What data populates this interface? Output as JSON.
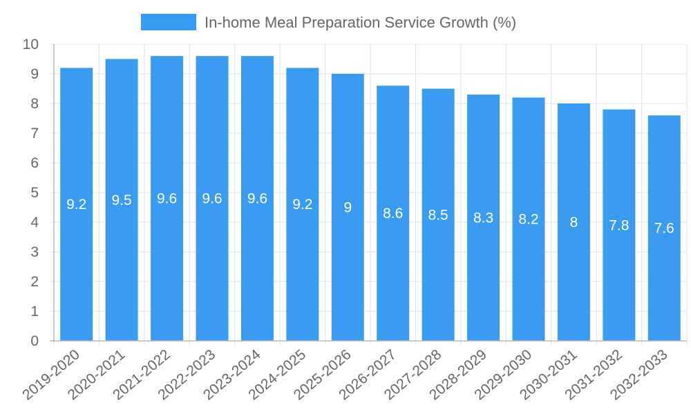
{
  "chart_data": {
    "type": "bar",
    "categories": [
      "2019-2020",
      "2020-2021",
      "2021-2022",
      "2022-2023",
      "2023-2024",
      "2024-2025",
      "2025-2026",
      "2026-2027",
      "2027-2028",
      "2028-2029",
      "2029-2030",
      "2030-2031",
      "2031-2032",
      "2032-2033"
    ],
    "series": [
      {
        "name": "In-home Meal Preparation Service Growth (%)",
        "values": [
          9.2,
          9.5,
          9.6,
          9.6,
          9.6,
          9.2,
          9,
          8.6,
          8.5,
          8.3,
          8.2,
          8,
          7.8,
          7.6
        ],
        "color": "#3a9cf0"
      }
    ],
    "title": "",
    "xlabel": "",
    "ylabel": "",
    "ylim": [
      0,
      10
    ],
    "yticks": [
      0,
      1,
      2,
      3,
      4,
      5,
      6,
      7,
      8,
      9,
      10
    ],
    "grid": true,
    "legend_position": "top-center",
    "data_labels": true
  },
  "colors": {
    "grid": "#e1e1e1",
    "axis": "#b8b8b8",
    "tick_text": "#666666",
    "label_text": "#ffffff"
  }
}
